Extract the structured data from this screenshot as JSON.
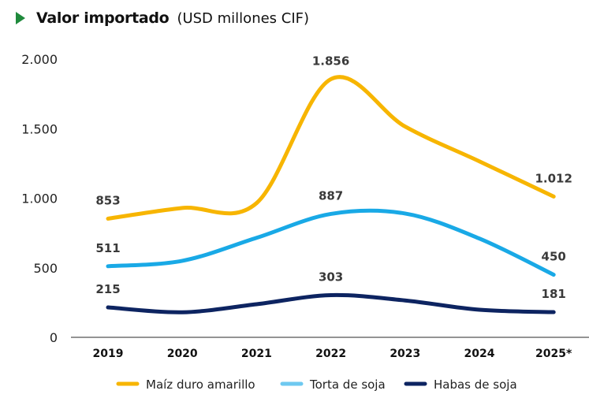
{
  "header": {
    "title": "Valor importado",
    "subtitle": "(USD millones CIF)",
    "marker_color": "#1f8a3c"
  },
  "chart_data": {
    "type": "line",
    "title": "Valor importado (USD millones CIF)",
    "xlabel": "",
    "ylabel": "",
    "categories": [
      "2019",
      "2020",
      "2021",
      "2022",
      "2023",
      "2024",
      "2025*"
    ],
    "ylim": [
      0,
      2000
    ],
    "yticks": [
      0,
      500,
      1000,
      1500,
      2000
    ],
    "ytick_labels": [
      "0",
      "500",
      "1.000",
      "1.500",
      "2.000"
    ],
    "grid": false,
    "legend_position": "bottom",
    "series": [
      {
        "name": "Maíz duro amarillo",
        "color": "#f7b500",
        "values": [
          853,
          930,
          965,
          1856,
          1515,
          1265,
          1012
        ],
        "labels": {
          "0": "853",
          "3": "1.856",
          "6": "1.012"
        }
      },
      {
        "name": "Torta de soja",
        "color": "#19a9e6",
        "legend_color": "#6ec9f0",
        "values": [
          511,
          550,
          715,
          887,
          890,
          710,
          450
        ],
        "labels": {
          "0": "511",
          "3": "887",
          "6": "450"
        }
      },
      {
        "name": "Habas de soja",
        "color": "#0d2461",
        "values": [
          215,
          180,
          238,
          303,
          265,
          198,
          181
        ],
        "labels": {
          "0": "215",
          "3": "303",
          "6": "181"
        }
      }
    ]
  }
}
